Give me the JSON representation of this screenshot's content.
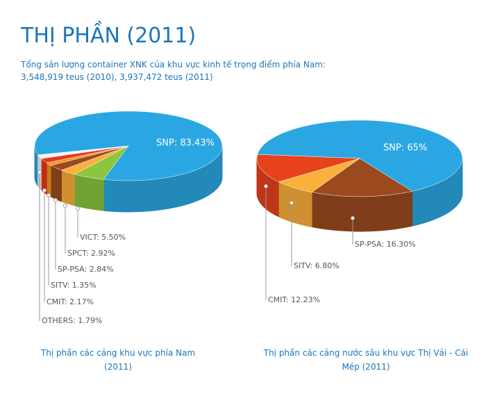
{
  "header": {
    "title": "THỊ PHẦN (2011)",
    "subtitle": [
      "Tổng sản lượng container XNK của khu vực kinh tế trọng điểm phía Nam:",
      "3,548,919 teus (2010), 3,937,472 teus (2011)"
    ]
  },
  "chart_data": [
    {
      "type": "pie",
      "title": "Thị phần các cảng khu vực phía Nam (2011)",
      "values": [
        83.43,
        5.5,
        2.92,
        2.84,
        1.35,
        2.17,
        1.79
      ],
      "value_labels": [
        "SNP: 83.43%",
        "VICT: 5.50%",
        "SPCT: 2.92%",
        "SP-PSA: 2.84%",
        "SITV: 1.35%",
        "CMIT: 2.17%",
        "OTHERS: 1.79%"
      ],
      "colors": [
        "#2aa7e2",
        "#8cc63f",
        "#fbb03b",
        "#9b4a1f",
        "#f7941d",
        "#e8361c",
        "#f2f2f2"
      ]
    },
    {
      "type": "pie",
      "title": "Thị phần các cảng nước sâu khu vực Thị Vải - Cái Mép (2011)",
      "values": [
        65,
        16.3,
        6.8,
        12.23
      ],
      "value_labels": [
        "SNP: 65%",
        "SP-PSA: 16.30%",
        "SITV: 6.80%",
        "CMIT: 12.23%"
      ],
      "colors": [
        "#2aa7e2",
        "#9b4a1f",
        "#fbb03b",
        "#e8421c"
      ]
    }
  ]
}
